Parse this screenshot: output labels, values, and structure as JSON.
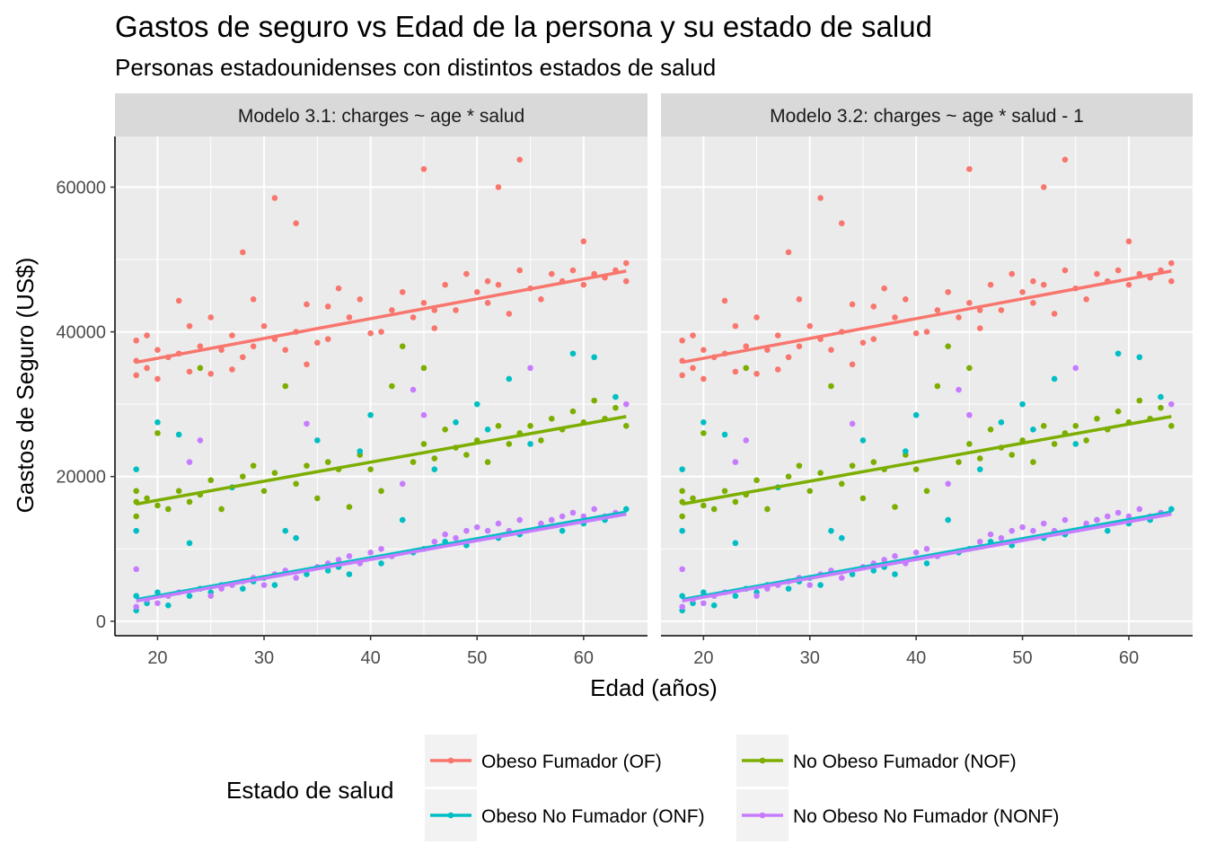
{
  "chart_data": {
    "type": "scatter",
    "title": "Gastos de seguro vs Edad de la persona y su estado de salud",
    "subtitle": "Personas estadounidenses con distintos estados de salud",
    "xlabel": "Edad (años)",
    "ylabel": "Gastos de Seguro (US$)",
    "xlim": [
      16,
      66
    ],
    "ylim": [
      -2000,
      67000
    ],
    "x_ticks": [
      20,
      30,
      40,
      50,
      60
    ],
    "y_ticks": [
      0,
      20000,
      40000,
      60000
    ],
    "x_tick_labels": [
      "20",
      "30",
      "40",
      "50",
      "60"
    ],
    "y_tick_labels": [
      "0",
      "20000",
      "40000",
      "60000"
    ],
    "grid": true,
    "legend_position": "bottom",
    "legend_title": "Estado de salud",
    "facets": [
      {
        "label": "Modelo 3.1: charges ~ age * salud"
      },
      {
        "label": "Modelo 3.2: charges ~ age * salud - 1"
      }
    ],
    "series": [
      {
        "name": "Obeso Fumador (OF)",
        "color": "#F8766D",
        "fit_line": {
          "x": [
            18,
            64
          ],
          "y": [
            35800,
            48400
          ]
        },
        "points": [
          [
            18,
            36000
          ],
          [
            18,
            38800
          ],
          [
            18,
            34000
          ],
          [
            19,
            39500
          ],
          [
            19,
            35000
          ],
          [
            20,
            37500
          ],
          [
            20,
            33500
          ],
          [
            21,
            36500
          ],
          [
            22,
            44300
          ],
          [
            22,
            37000
          ],
          [
            23,
            40800
          ],
          [
            23,
            34500
          ],
          [
            24,
            38000
          ],
          [
            25,
            42000
          ],
          [
            25,
            34200
          ],
          [
            26,
            37500
          ],
          [
            27,
            39500
          ],
          [
            27,
            34800
          ],
          [
            28,
            51000
          ],
          [
            28,
            36500
          ],
          [
            29,
            44500
          ],
          [
            29,
            38000
          ],
          [
            30,
            40800
          ],
          [
            31,
            58500
          ],
          [
            31,
            39000
          ],
          [
            32,
            37500
          ],
          [
            33,
            55000
          ],
          [
            33,
            40000
          ],
          [
            34,
            43800
          ],
          [
            34,
            35500
          ],
          [
            35,
            38500
          ],
          [
            36,
            43500
          ],
          [
            36,
            39000
          ],
          [
            37,
            46000
          ],
          [
            38,
            42000
          ],
          [
            39,
            44500
          ],
          [
            40,
            39800
          ],
          [
            41,
            40000
          ],
          [
            42,
            43000
          ],
          [
            43,
            45500
          ],
          [
            44,
            42000
          ],
          [
            45,
            62500
          ],
          [
            45,
            44000
          ],
          [
            46,
            43000
          ],
          [
            46,
            40500
          ],
          [
            47,
            46500
          ],
          [
            48,
            43000
          ],
          [
            49,
            48000
          ],
          [
            50,
            45500
          ],
          [
            51,
            44000
          ],
          [
            51,
            47000
          ],
          [
            52,
            60000
          ],
          [
            52,
            46500
          ],
          [
            53,
            42500
          ],
          [
            54,
            63800
          ],
          [
            54,
            48500
          ],
          [
            55,
            46000
          ],
          [
            56,
            44500
          ],
          [
            57,
            48000
          ],
          [
            58,
            47000
          ],
          [
            59,
            48500
          ],
          [
            60,
            52500
          ],
          [
            60,
            46500
          ],
          [
            61,
            48000
          ],
          [
            62,
            47500
          ],
          [
            63,
            48500
          ],
          [
            64,
            49500
          ],
          [
            64,
            47000
          ]
        ]
      },
      {
        "name": "No Obeso Fumador (NOF)",
        "color": "#7CAE00",
        "fit_line": {
          "x": [
            18,
            64
          ],
          "y": [
            16200,
            28300
          ]
        },
        "points": [
          [
            18,
            16500
          ],
          [
            18,
            18000
          ],
          [
            18,
            14500
          ],
          [
            19,
            17000
          ],
          [
            20,
            16000
          ],
          [
            20,
            26000
          ],
          [
            21,
            15500
          ],
          [
            22,
            18000
          ],
          [
            23,
            16500
          ],
          [
            24,
            35000
          ],
          [
            24,
            17500
          ],
          [
            25,
            19500
          ],
          [
            26,
            15500
          ],
          [
            27,
            18500
          ],
          [
            28,
            20000
          ],
          [
            29,
            21500
          ],
          [
            30,
            18000
          ],
          [
            31,
            20500
          ],
          [
            32,
            32500
          ],
          [
            33,
            19000
          ],
          [
            34,
            21500
          ],
          [
            35,
            17000
          ],
          [
            36,
            22000
          ],
          [
            37,
            21000
          ],
          [
            38,
            15800
          ],
          [
            39,
            23000
          ],
          [
            40,
            21000
          ],
          [
            41,
            18000
          ],
          [
            42,
            32500
          ],
          [
            43,
            38000
          ],
          [
            44,
            22000
          ],
          [
            45,
            35000
          ],
          [
            45,
            24500
          ],
          [
            46,
            22500
          ],
          [
            47,
            26500
          ],
          [
            48,
            24000
          ],
          [
            49,
            23000
          ],
          [
            50,
            25000
          ],
          [
            51,
            22000
          ],
          [
            52,
            27000
          ],
          [
            53,
            24500
          ],
          [
            54,
            26000
          ],
          [
            55,
            27000
          ],
          [
            56,
            25000
          ],
          [
            57,
            28000
          ],
          [
            58,
            26500
          ],
          [
            59,
            29000
          ],
          [
            60,
            27500
          ],
          [
            61,
            30500
          ],
          [
            62,
            28000
          ],
          [
            63,
            29500
          ],
          [
            64,
            27000
          ]
        ]
      },
      {
        "name": "Obeso No Fumador (ONF)",
        "color": "#00BFC4",
        "fit_line": {
          "x": [
            18,
            64
          ],
          "y": [
            3000,
            15100
          ]
        },
        "points": [
          [
            18,
            1500
          ],
          [
            18,
            3500
          ],
          [
            18,
            21000
          ],
          [
            18,
            12500
          ],
          [
            19,
            2500
          ],
          [
            20,
            4000
          ],
          [
            20,
            27500
          ],
          [
            21,
            2200
          ],
          [
            22,
            25800
          ],
          [
            23,
            10800
          ],
          [
            23,
            3500
          ],
          [
            24,
            4500
          ],
          [
            25,
            4000
          ],
          [
            26,
            5000
          ],
          [
            27,
            18500
          ],
          [
            28,
            4500
          ],
          [
            29,
            5500
          ],
          [
            30,
            6000
          ],
          [
            31,
            5000
          ],
          [
            32,
            12500
          ],
          [
            33,
            11500
          ],
          [
            34,
            6500
          ],
          [
            35,
            25000
          ],
          [
            36,
            7000
          ],
          [
            37,
            7500
          ],
          [
            38,
            6500
          ],
          [
            39,
            23500
          ],
          [
            40,
            28500
          ],
          [
            41,
            8000
          ],
          [
            42,
            9000
          ],
          [
            43,
            14000
          ],
          [
            44,
            9500
          ],
          [
            45,
            10000
          ],
          [
            46,
            21000
          ],
          [
            47,
            11000
          ],
          [
            48,
            27500
          ],
          [
            49,
            10500
          ],
          [
            50,
            30000
          ],
          [
            51,
            26500
          ],
          [
            52,
            11500
          ],
          [
            53,
            33500
          ],
          [
            54,
            12000
          ],
          [
            55,
            24500
          ],
          [
            56,
            13000
          ],
          [
            57,
            14000
          ],
          [
            58,
            12500
          ],
          [
            59,
            37000
          ],
          [
            60,
            13500
          ],
          [
            61,
            36500
          ],
          [
            62,
            14000
          ],
          [
            63,
            31000
          ],
          [
            64,
            15500
          ]
        ]
      },
      {
        "name": "No Obeso No Fumador (NONF)",
        "color": "#C77CFF",
        "fit_line": {
          "x": [
            18,
            64
          ],
          "y": [
            2800,
            14800
          ]
        },
        "points": [
          [
            18,
            2000
          ],
          [
            18,
            7200
          ],
          [
            19,
            3000
          ],
          [
            20,
            2500
          ],
          [
            21,
            3500
          ],
          [
            22,
            4000
          ],
          [
            23,
            22000
          ],
          [
            24,
            25000
          ],
          [
            25,
            3500
          ],
          [
            26,
            4500
          ],
          [
            27,
            5000
          ],
          [
            28,
            5500
          ],
          [
            29,
            6000
          ],
          [
            30,
            5000
          ],
          [
            31,
            6500
          ],
          [
            32,
            7000
          ],
          [
            33,
            6000
          ],
          [
            34,
            27300
          ],
          [
            35,
            7500
          ],
          [
            36,
            8000
          ],
          [
            37,
            8500
          ],
          [
            38,
            9000
          ],
          [
            39,
            8000
          ],
          [
            40,
            9500
          ],
          [
            41,
            10000
          ],
          [
            42,
            9000
          ],
          [
            43,
            19000
          ],
          [
            44,
            32000
          ],
          [
            45,
            28500
          ],
          [
            46,
            11000
          ],
          [
            47,
            12000
          ],
          [
            48,
            11500
          ],
          [
            49,
            12500
          ],
          [
            50,
            13000
          ],
          [
            51,
            12500
          ],
          [
            52,
            13500
          ],
          [
            53,
            12500
          ],
          [
            54,
            14000
          ],
          [
            55,
            35000
          ],
          [
            56,
            13500
          ],
          [
            57,
            14000
          ],
          [
            58,
            14500
          ],
          [
            59,
            15000
          ],
          [
            60,
            14500
          ],
          [
            61,
            15500
          ],
          [
            62,
            14500
          ],
          [
            63,
            15000
          ],
          [
            64,
            30000
          ]
        ]
      }
    ]
  }
}
